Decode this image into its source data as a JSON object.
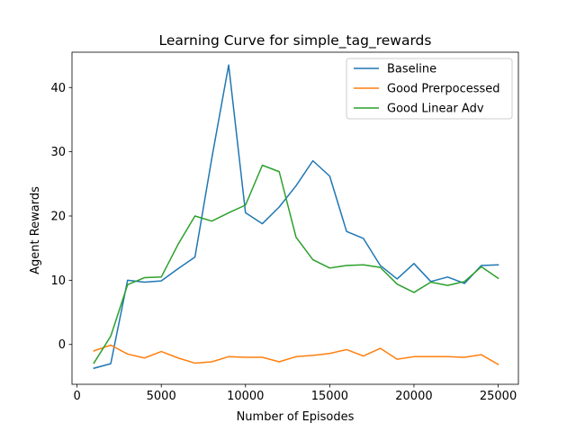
{
  "chart_data": {
    "type": "line",
    "title": "Learning Curve for simple_tag_rewards",
    "xlabel": "Number of Episodes",
    "ylabel": "Agent Rewards",
    "xlim": [
      -300,
      26200
    ],
    "ylim": [
      -6.2,
      45.5
    ],
    "xticks": [
      0,
      5000,
      10000,
      15000,
      20000,
      25000
    ],
    "yticks": [
      0,
      10,
      20,
      30,
      40
    ],
    "grid": false,
    "legend_position": "top-right",
    "x": [
      1000,
      2000,
      3000,
      4000,
      5000,
      6000,
      7000,
      8000,
      9000,
      10000,
      11000,
      12000,
      13000,
      14000,
      15000,
      16000,
      17000,
      18000,
      19000,
      20000,
      21000,
      22000,
      23000,
      24000,
      25000
    ],
    "series": [
      {
        "name": "Baseline",
        "color": "#1f77b4",
        "values": [
          -3.7,
          -3.0,
          10.0,
          9.7,
          9.9,
          11.8,
          13.6,
          29.0,
          43.5,
          20.5,
          18.8,
          21.4,
          24.7,
          28.6,
          26.2,
          17.6,
          16.5,
          12.3,
          10.2,
          12.6,
          9.8,
          10.5,
          9.5,
          12.3,
          12.4
        ]
      },
      {
        "name": "Good Prerpocessed",
        "color": "#ff7f0e",
        "values": [
          -1.0,
          -0.1,
          -1.5,
          -2.1,
          -1.1,
          -2.1,
          -2.9,
          -2.7,
          -1.9,
          -2.0,
          -2.0,
          -2.7,
          -1.9,
          -1.7,
          -1.4,
          -0.8,
          -1.8,
          -0.6,
          -2.3,
          -1.9,
          -1.9,
          -1.9,
          -2.0,
          -1.6,
          -3.1
        ]
      },
      {
        "name": "Good Linear Adv",
        "color": "#2ca02c",
        "values": [
          -2.9,
          1.3,
          9.3,
          10.4,
          10.5,
          15.6,
          20.0,
          19.2,
          20.5,
          21.7,
          27.9,
          26.9,
          16.7,
          13.2,
          11.9,
          12.3,
          12.4,
          12.0,
          9.4,
          8.1,
          9.7,
          9.2,
          9.8,
          12.1,
          10.3
        ]
      }
    ]
  }
}
